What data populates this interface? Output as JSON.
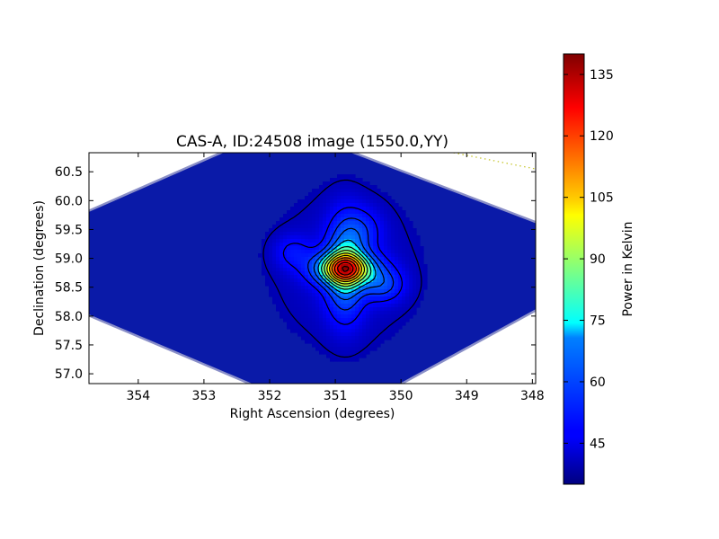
{
  "chart_data": {
    "type": "heatmap",
    "title": "CAS-A, ID:24508 image (1550.0,YY)",
    "xlabel": "Right Ascension (degrees)",
    "ylabel": "Declination (degrees)",
    "x_axis_inverted": true,
    "xlim": [
      354.75,
      347.95
    ],
    "ylim": [
      56.83,
      60.83
    ],
    "x_ticks": [
      "354",
      "353",
      "352",
      "351",
      "350",
      "349",
      "348"
    ],
    "x_tick_values": [
      354,
      353,
      352,
      351,
      350,
      349,
      348
    ],
    "y_ticks": [
      "57.0",
      "57.5",
      "58.0",
      "58.5",
      "59.0",
      "59.5",
      "60.0",
      "60.5"
    ],
    "y_tick_values": [
      57.0,
      57.5,
      58.0,
      58.5,
      59.0,
      59.5,
      60.0,
      60.5
    ],
    "colorbar": {
      "label": "Power in Kelvin",
      "range": [
        35,
        140
      ],
      "ticks": [
        "45",
        "60",
        "75",
        "90",
        "105",
        "120",
        "135"
      ],
      "tick_values": [
        45,
        60,
        75,
        90,
        105,
        120,
        135
      ],
      "colormap": "jet"
    },
    "source": {
      "peak_ra": 350.85,
      "peak_dec": 58.82,
      "peak_value": 138,
      "background_value": 38
    },
    "contour_levels": [
      40,
      48,
      56,
      64,
      72,
      80,
      88,
      96,
      104,
      112,
      120,
      128,
      136
    ],
    "contour_color": "#000000",
    "beam_marker": {
      "ra": 347.45,
      "dec": 60.39,
      "color": "#c8c832",
      "style": "circle with dotted line"
    },
    "grid": false
  }
}
